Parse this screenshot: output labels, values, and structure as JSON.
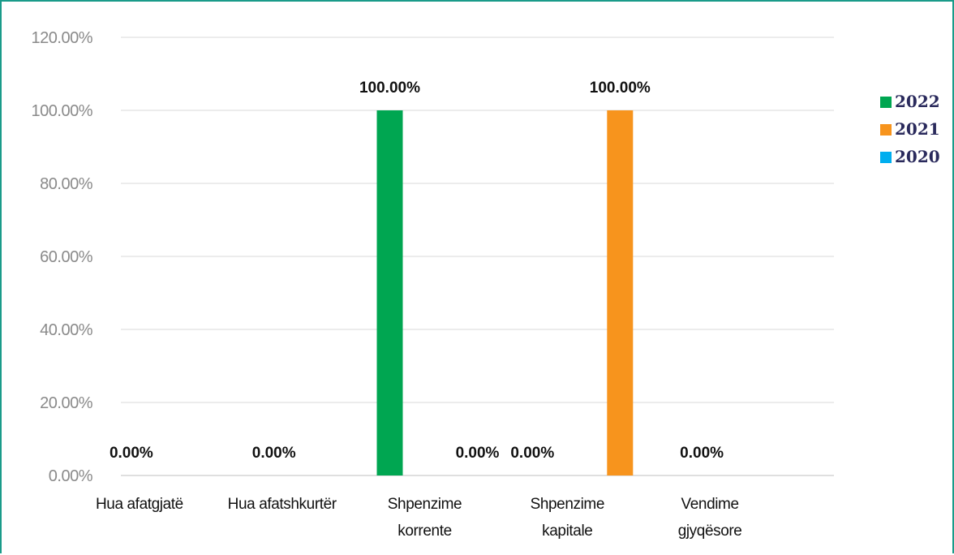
{
  "chart_data": {
    "type": "bar",
    "categories": [
      [
        "Hua afatgjatë"
      ],
      [
        "Hua afatshkurtër"
      ],
      [
        "Shpenzime",
        "korrente"
      ],
      [
        "Shpenzime",
        "kapitale"
      ],
      [
        "Vendime",
        "gjyqësore"
      ]
    ],
    "series": [
      {
        "name": "2022",
        "color": "#00a651",
        "values": [
          0,
          0,
          100,
          0,
          0
        ]
      },
      {
        "name": "2021",
        "color": "#f7941d",
        "values": [
          0,
          0,
          0,
          100,
          0
        ]
      },
      {
        "name": "2020",
        "color": "#00aeef",
        "values": [
          0,
          0,
          0,
          0,
          0
        ]
      }
    ],
    "data_labels": [
      {
        "category": 0,
        "text": "0.00%"
      },
      {
        "category": 1,
        "text": "0.00%"
      },
      {
        "category": 2,
        "text": "100.00%",
        "series": 0
      },
      {
        "category": 2,
        "text": "0.00%",
        "series": 1
      },
      {
        "category": 3,
        "text": "0.00%",
        "series": 0
      },
      {
        "category": 3,
        "text": "100.00%",
        "series": 1
      },
      {
        "category": 4,
        "text": "0.00%"
      }
    ],
    "y_ticks": [
      "0.00%",
      "20.00%",
      "40.00%",
      "60.00%",
      "80.00%",
      "100.00%",
      "120.00%"
    ],
    "ylim": [
      0,
      120
    ],
    "grid": true,
    "legend_position": "right"
  }
}
